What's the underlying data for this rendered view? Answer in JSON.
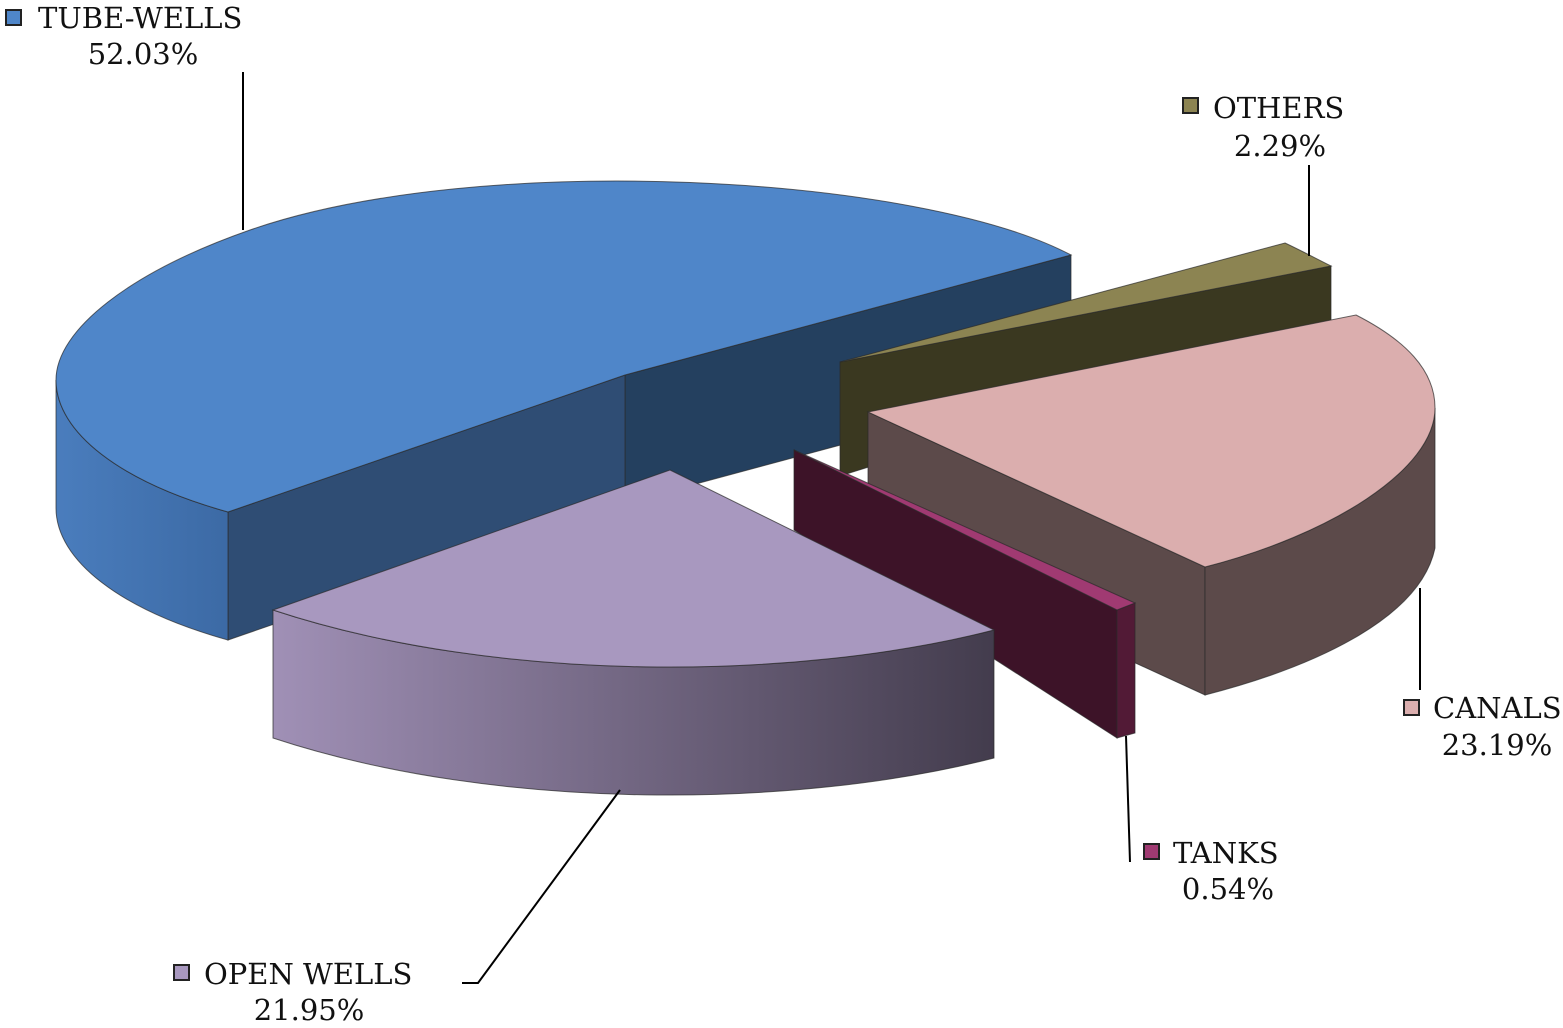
{
  "chart_data": {
    "type": "pie",
    "style": "3d-exploded",
    "title": "",
    "legend": "none",
    "slices": [
      {
        "name": "TUBE-WELLS",
        "value": 52.03,
        "label": "52.03%",
        "color": "#4f86c9"
      },
      {
        "name": "OTHERS",
        "value": 2.29,
        "label": "2.29%",
        "color": "#8c8452"
      },
      {
        "name": "CANALS",
        "value": 23.19,
        "label": "23.19%",
        "color": "#dbaeae"
      },
      {
        "name": "TANKS",
        "value": 0.54,
        "label": "0.54%",
        "color": "#a03a72"
      },
      {
        "name": "OPEN WELLS",
        "value": 21.95,
        "label": "21.95%",
        "color": "#a898bf"
      }
    ]
  }
}
